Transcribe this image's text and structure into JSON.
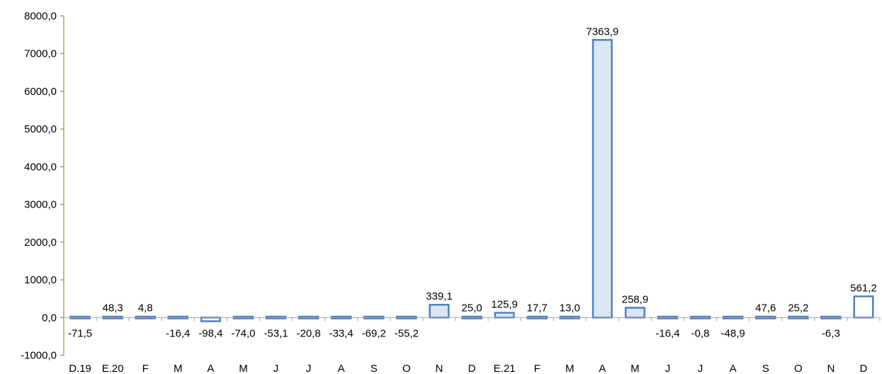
{
  "chart_data": {
    "type": "bar",
    "categories": [
      "D.19",
      "E.20",
      "F",
      "M",
      "A",
      "M",
      "J",
      "J",
      "A",
      "S",
      "O",
      "N",
      "D",
      "E.21",
      "F",
      "M",
      "A",
      "M",
      "J",
      "J",
      "A",
      "S",
      "O",
      "N",
      "D"
    ],
    "values": [
      -71.5,
      48.3,
      4.8,
      -16.4,
      -98.4,
      -74.0,
      -53.1,
      -20.8,
      -33.4,
      -69.2,
      -55.2,
      339.1,
      25.0,
      125.9,
      17.7,
      13.0,
      7363.9,
      258.9,
      -16.4,
      -0.8,
      -48.9,
      47.6,
      25.2,
      -6.3,
      561.2
    ],
    "data_labels": [
      "-71,5",
      "48,3",
      "4,8",
      "-16,4",
      "-98,4",
      "-74,0",
      "-53,1",
      "-20,8",
      "-33,4",
      "-69,2",
      "-55,2",
      "339,1",
      "25,0",
      "125,9",
      "17,7",
      "13,0",
      "7363,9",
      "258,9",
      "-16,4",
      "-0,8",
      "-48,9",
      "47,6",
      "25,2",
      "-6,3",
      "561,2"
    ],
    "bar_styles": [
      "solid",
      "solid",
      "solid",
      "solid",
      "outline",
      "solid",
      "solid",
      "solid",
      "solid",
      "solid",
      "solid",
      "light",
      "solid",
      "light",
      "solid",
      "solid",
      "light",
      "light",
      "solid",
      "solid",
      "solid",
      "solid",
      "solid",
      "solid",
      "outline"
    ],
    "y_ticks": [
      -1000,
      0,
      1000,
      2000,
      3000,
      4000,
      5000,
      6000,
      7000,
      8000
    ],
    "y_tick_labels": [
      "-1000,0",
      "0,0",
      "1000,0",
      "2000,0",
      "3000,0",
      "4000,0",
      "5000,0",
      "6000,0",
      "7000,0",
      "8000,0"
    ],
    "ylim": [
      -1000,
      8000
    ],
    "title": "",
    "xlabel": "",
    "ylabel": "",
    "grid": false,
    "colors": {
      "bar_fill": "#4f81bd",
      "bar_stroke": "#4f81bd",
      "bar_light_fill": "#dce6f2",
      "bar_outline_fill": "#ffffff",
      "y_axis": "#7f9f3f",
      "x_axis": "#a6a6a6"
    }
  }
}
